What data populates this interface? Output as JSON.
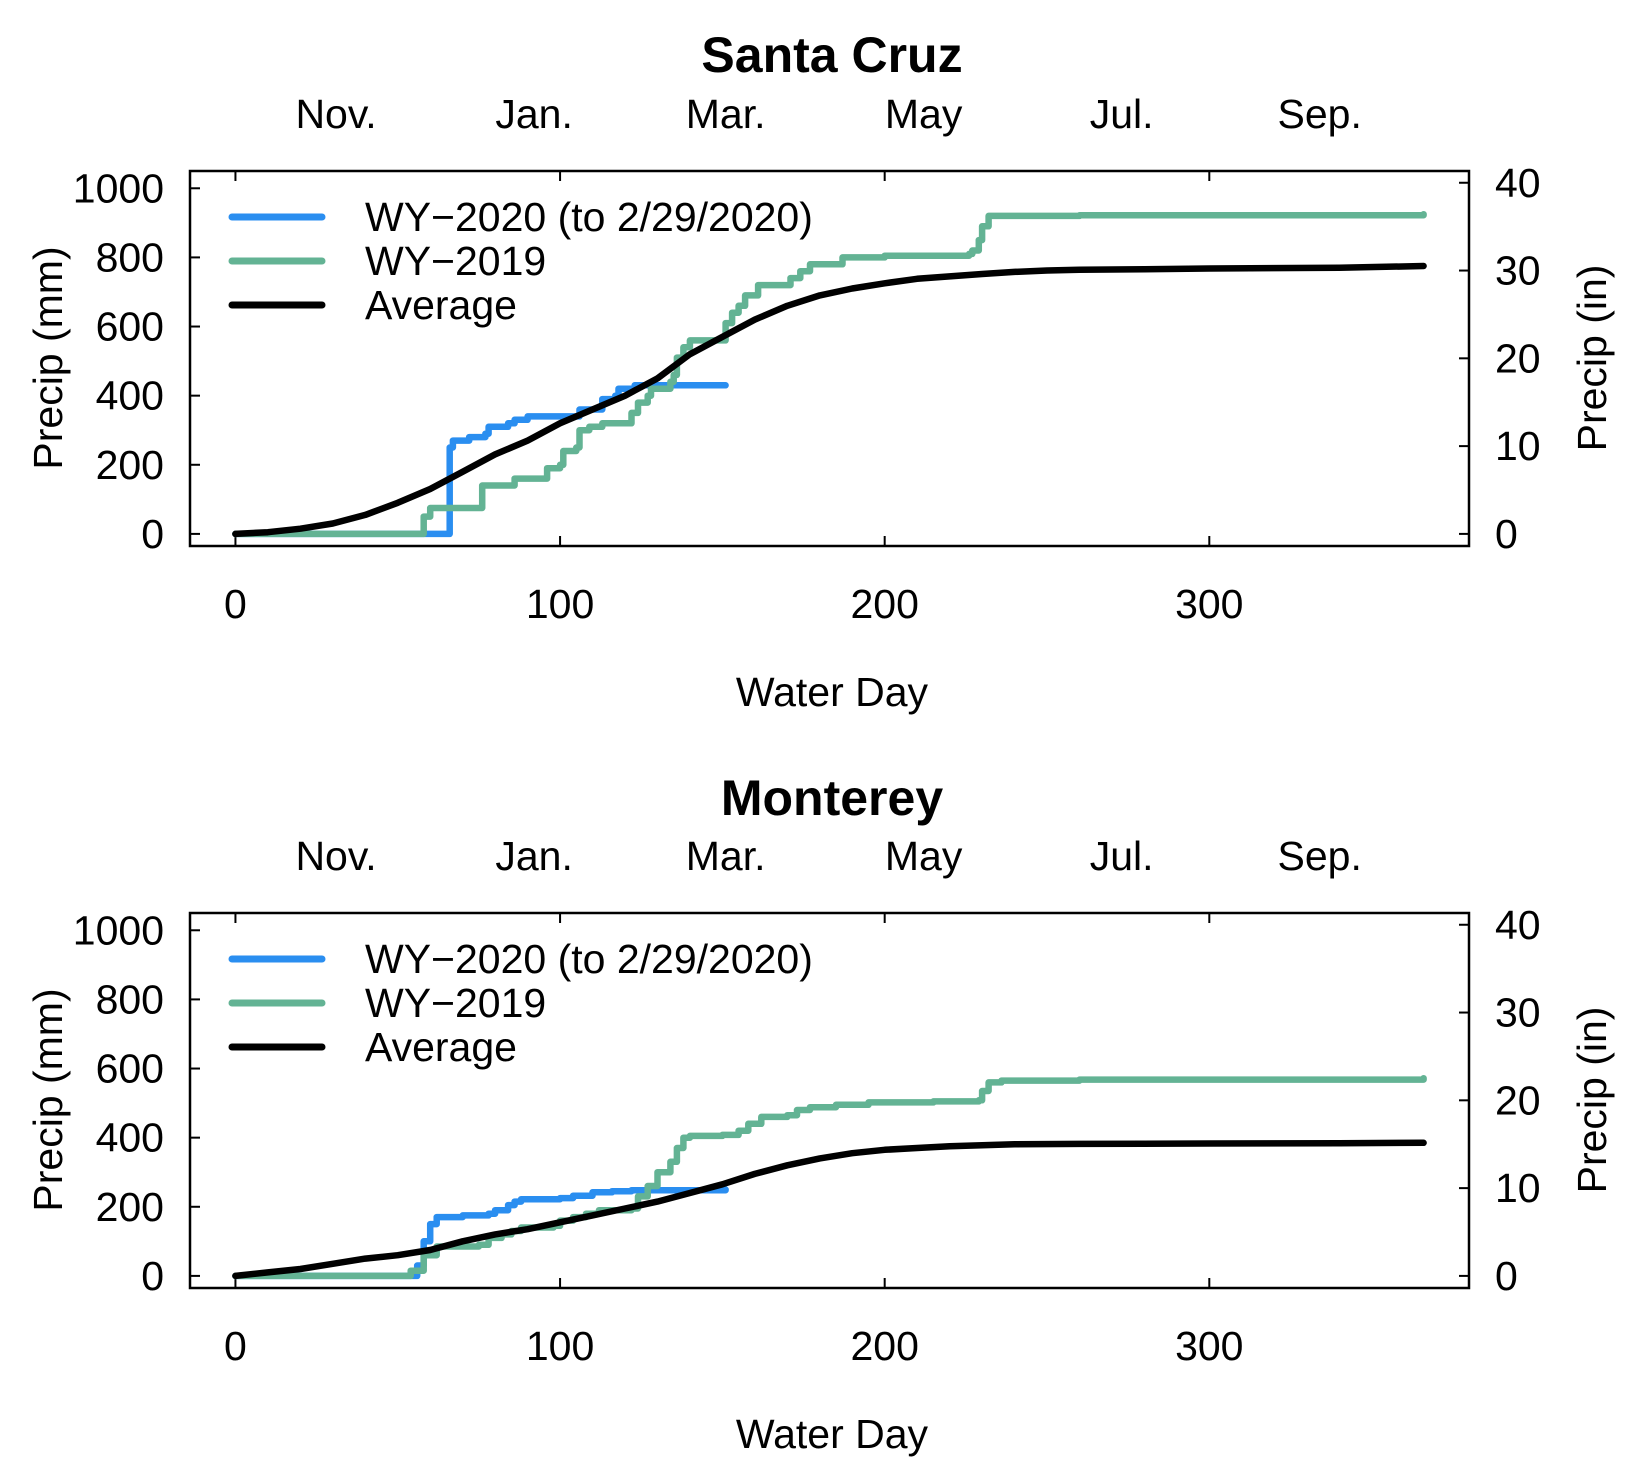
{
  "chart_data": [
    {
      "type": "line",
      "title": "Santa Cruz",
      "xlabel": "Water Day",
      "ylabel": "Precip (mm)",
      "y2label": "Precip (in)",
      "xlim": [
        -14,
        380
      ],
      "ylim": [
        -35,
        1050
      ],
      "y2lim": [
        -1.378,
        41.339
      ],
      "xticks": [
        "0",
        "100",
        "200",
        "300"
      ],
      "xtick_values": [
        0,
        100,
        200,
        300
      ],
      "yticks": [
        "0",
        "200",
        "400",
        "600",
        "800",
        "1000"
      ],
      "ytick_values": [
        0,
        200,
        400,
        600,
        800,
        1000
      ],
      "y2ticks": [
        "0",
        "10",
        "20",
        "30",
        "40"
      ],
      "y2tick_values": [
        0,
        10,
        20,
        30,
        40
      ],
      "month_labels": [
        "Nov.",
        "Jan.",
        "Mar.",
        "May",
        "Jul.",
        "Sep."
      ],
      "month_positions": [
        31,
        92,
        151,
        212,
        273,
        334
      ],
      "grid": false,
      "legend_position": "top-left",
      "series": [
        {
          "name": "WY−2020 (to 2/29/2020)",
          "color": "#2a8ef0",
          "step": true,
          "points": [
            [
              0,
              0
            ],
            [
              65,
              0
            ],
            [
              66,
              250
            ],
            [
              67,
              270
            ],
            [
              72,
              280
            ],
            [
              77,
              290
            ],
            [
              78,
              310
            ],
            [
              84,
              320
            ],
            [
              86,
              330
            ],
            [
              90,
              340
            ],
            [
              105,
              340
            ],
            [
              106,
              360
            ],
            [
              112,
              360
            ],
            [
              113,
              390
            ],
            [
              117,
              400
            ],
            [
              118,
              420
            ],
            [
              123,
              430
            ],
            [
              151,
              430
            ]
          ]
        },
        {
          "name": "WY−2019",
          "color": "#63b394",
          "step": true,
          "points": [
            [
              0,
              0
            ],
            [
              57,
              0
            ],
            [
              58,
              50
            ],
            [
              60,
              75
            ],
            [
              75,
              75
            ],
            [
              76,
              140
            ],
            [
              85,
              140
            ],
            [
              86,
              160
            ],
            [
              95,
              160
            ],
            [
              96,
              190
            ],
            [
              100,
              200
            ],
            [
              101,
              240
            ],
            [
              105,
              250
            ],
            [
              106,
              300
            ],
            [
              109,
              310
            ],
            [
              112,
              310
            ],
            [
              113,
              320
            ],
            [
              121,
              320
            ],
            [
              122,
              350
            ],
            [
              124,
              380
            ],
            [
              127,
              400
            ],
            [
              128,
              420
            ],
            [
              134,
              440
            ],
            [
              135,
              460
            ],
            [
              136,
              510
            ],
            [
              138,
              540
            ],
            [
              140,
              560
            ],
            [
              150,
              560
            ],
            [
              151,
              610
            ],
            [
              153,
              640
            ],
            [
              155,
              660
            ],
            [
              157,
              690
            ],
            [
              161,
              720
            ],
            [
              170,
              720
            ],
            [
              171,
              740
            ],
            [
              174,
              760
            ],
            [
              177,
              780
            ],
            [
              186,
              780
            ],
            [
              187,
              800
            ],
            [
              200,
              805
            ],
            [
              226,
              810
            ],
            [
              227,
              820
            ],
            [
              229,
              850
            ],
            [
              230,
              890
            ],
            [
              232,
              920
            ],
            [
              260,
              922
            ],
            [
              300,
              922
            ],
            [
              350,
              922
            ],
            [
              366,
              925
            ]
          ]
        },
        {
          "name": "Average",
          "color": "#000000",
          "points": [
            [
              0,
              0
            ],
            [
              10,
              5
            ],
            [
              20,
              15
            ],
            [
              30,
              30
            ],
            [
              40,
              55
            ],
            [
              50,
              90
            ],
            [
              60,
              130
            ],
            [
              70,
              180
            ],
            [
              80,
              230
            ],
            [
              90,
              270
            ],
            [
              100,
              320
            ],
            [
              110,
              360
            ],
            [
              120,
              400
            ],
            [
              130,
              450
            ],
            [
              140,
              520
            ],
            [
              150,
              570
            ],
            [
              160,
              620
            ],
            [
              170,
              660
            ],
            [
              180,
              690
            ],
            [
              190,
              710
            ],
            [
              200,
              725
            ],
            [
              210,
              738
            ],
            [
              220,
              745
            ],
            [
              230,
              752
            ],
            [
              240,
              758
            ],
            [
              250,
              762
            ],
            [
              260,
              764
            ],
            [
              280,
              766
            ],
            [
              300,
              768
            ],
            [
              340,
              770
            ],
            [
              366,
              775
            ]
          ]
        }
      ]
    },
    {
      "type": "line",
      "title": "Monterey",
      "xlabel": "Water Day",
      "ylabel": "Precip (mm)",
      "y2label": "Precip (in)",
      "xlim": [
        -14,
        380
      ],
      "ylim": [
        -35,
        1050
      ],
      "y2lim": [
        -1.378,
        41.339
      ],
      "xticks": [
        "0",
        "100",
        "200",
        "300"
      ],
      "xtick_values": [
        0,
        100,
        200,
        300
      ],
      "yticks": [
        "0",
        "200",
        "400",
        "600",
        "800",
        "1000"
      ],
      "ytick_values": [
        0,
        200,
        400,
        600,
        800,
        1000
      ],
      "y2ticks": [
        "0",
        "10",
        "20",
        "30",
        "40"
      ],
      "y2tick_values": [
        0,
        10,
        20,
        30,
        40
      ],
      "month_labels": [
        "Nov.",
        "Jan.",
        "Mar.",
        "May",
        "Jul.",
        "Sep."
      ],
      "month_positions": [
        31,
        92,
        151,
        212,
        273,
        334
      ],
      "grid": false,
      "legend_position": "top-left",
      "series": [
        {
          "name": "WY−2020 (to 2/29/2020)",
          "color": "#2a8ef0",
          "step": true,
          "points": [
            [
              0,
              0
            ],
            [
              54,
              0
            ],
            [
              56,
              30
            ],
            [
              58,
              100
            ],
            [
              60,
              150
            ],
            [
              62,
              170
            ],
            [
              70,
              175
            ],
            [
              78,
              180
            ],
            [
              80,
              190
            ],
            [
              84,
              205
            ],
            [
              86,
              215
            ],
            [
              88,
              222
            ],
            [
              100,
              225
            ],
            [
              104,
              232
            ],
            [
              110,
              242
            ],
            [
              116,
              245
            ],
            [
              122,
              248
            ],
            [
              151,
              250
            ]
          ]
        },
        {
          "name": "WY−2019",
          "color": "#63b394",
          "step": true,
          "points": [
            [
              0,
              0
            ],
            [
              50,
              0
            ],
            [
              54,
              15
            ],
            [
              58,
              60
            ],
            [
              62,
              85
            ],
            [
              75,
              90
            ],
            [
              78,
              110
            ],
            [
              82,
              120
            ],
            [
              85,
              130
            ],
            [
              88,
              140
            ],
            [
              98,
              145
            ],
            [
              100,
              160
            ],
            [
              104,
              170
            ],
            [
              108,
              180
            ],
            [
              112,
              190
            ],
            [
              122,
              195
            ],
            [
              124,
              230
            ],
            [
              127,
              260
            ],
            [
              130,
              300
            ],
            [
              134,
              330
            ],
            [
              136,
              370
            ],
            [
              138,
              400
            ],
            [
              140,
              405
            ],
            [
              150,
              408
            ],
            [
              155,
              420
            ],
            [
              158,
              440
            ],
            [
              162,
              460
            ],
            [
              170,
              465
            ],
            [
              173,
              480
            ],
            [
              177,
              488
            ],
            [
              185,
              495
            ],
            [
              195,
              502
            ],
            [
              215,
              505
            ],
            [
              229,
              508
            ],
            [
              230,
              535
            ],
            [
              232,
              560
            ],
            [
              236,
              565
            ],
            [
              260,
              568
            ],
            [
              300,
              568
            ],
            [
              350,
              568
            ],
            [
              366,
              572
            ]
          ]
        },
        {
          "name": "Average",
          "color": "#000000",
          "points": [
            [
              0,
              0
            ],
            [
              10,
              10
            ],
            [
              20,
              20
            ],
            [
              30,
              35
            ],
            [
              40,
              50
            ],
            [
              50,
              60
            ],
            [
              60,
              75
            ],
            [
              70,
              100
            ],
            [
              80,
              120
            ],
            [
              90,
              135
            ],
            [
              100,
              155
            ],
            [
              110,
              175
            ],
            [
              120,
              195
            ],
            [
              130,
              215
            ],
            [
              140,
              240
            ],
            [
              150,
              265
            ],
            [
              160,
              295
            ],
            [
              170,
              320
            ],
            [
              180,
              340
            ],
            [
              190,
              355
            ],
            [
              200,
              365
            ],
            [
              210,
              370
            ],
            [
              220,
              375
            ],
            [
              230,
              378
            ],
            [
              240,
              381
            ],
            [
              260,
              382
            ],
            [
              300,
              383
            ],
            [
              340,
              384
            ],
            [
              366,
              385
            ]
          ]
        }
      ]
    }
  ]
}
